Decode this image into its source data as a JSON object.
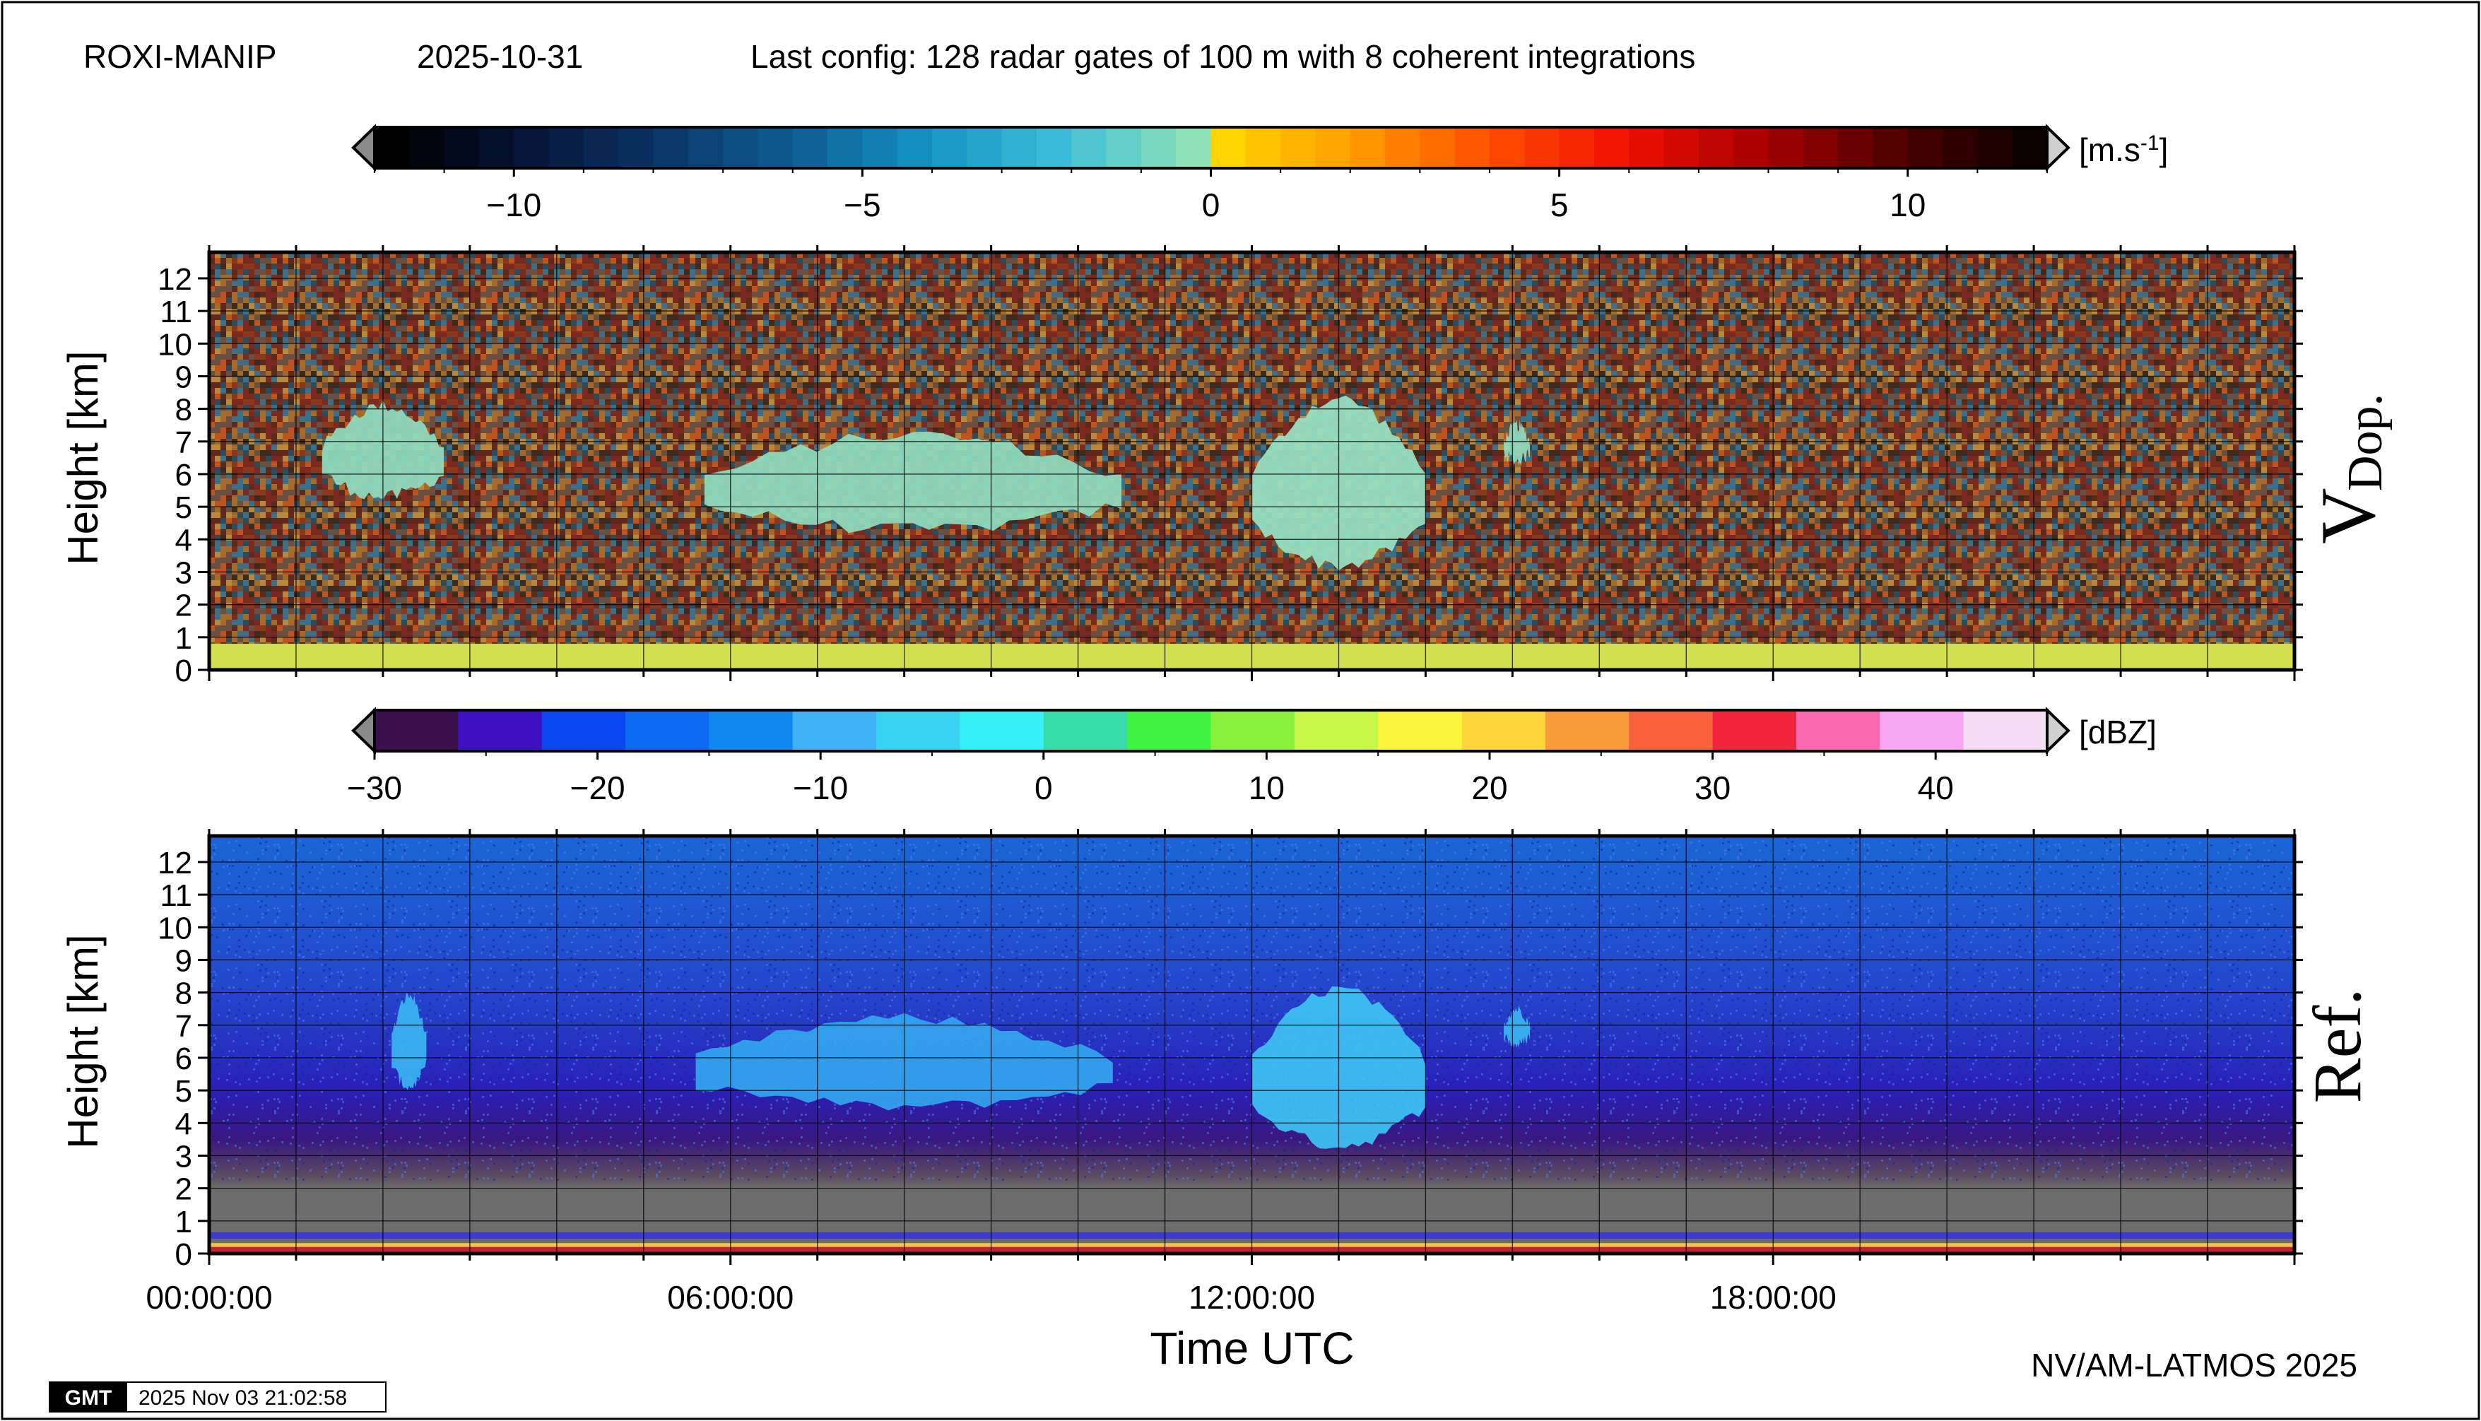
{
  "header": {
    "station": "ROXI-MANIP",
    "date": "2025-10-31",
    "config": "Last config: 128 radar gates of 100 m with 8 coherent integrations"
  },
  "footer": {
    "credit": "NV/AM-LATMOS 2025",
    "gmt_logo": "GMT",
    "gmt_timestamp": "2025 Nov 03 21:02:58"
  },
  "chart_data": [
    {
      "type": "heatmap",
      "label": "V",
      "label_sub": "Dop.",
      "ylabel": "Height [km]",
      "xlabel": "",
      "ylim": [
        0,
        12.8
      ],
      "xlim_hours": [
        0,
        24
      ],
      "y_ticks": [
        0,
        1,
        2,
        3,
        4,
        5,
        6,
        7,
        8,
        9,
        10,
        11,
        12
      ],
      "x_tick_labels": [],
      "grid": true,
      "colorbar": {
        "unit": "[m.s",
        "unit_sup": "-1",
        "unit_end": "]",
        "range": [
          -12,
          12
        ],
        "ticks": [
          -10,
          -5,
          0,
          5,
          10
        ],
        "tick_labels": [
          "−10",
          "−5",
          "0",
          "5",
          "10"
        ],
        "colors_negative": [
          "#000000",
          "#061437",
          "#0b3567",
          "#0e5c92",
          "#1493c3",
          "#3dbdd8",
          "#8ee3b8"
        ],
        "colors_positive": [
          "#ffd500",
          "#ff9800",
          "#ff4a00",
          "#ef0e00",
          "#a60000",
          "#4f0000",
          "#0c0000"
        ],
        "end_arrow_color": "#8a8a8a"
      },
      "background": "noise",
      "near_ground_layer": {
        "from_km": 0,
        "to_km": 0.8,
        "color": "#d4df50",
        "value_approx": 1
      },
      "cloud_echoes": [
        {
          "start_h": 1.3,
          "end_h": 2.7,
          "base_km": 5.3,
          "top_km": 8.1,
          "color": "#8fdcc0"
        },
        {
          "start_h": 5.7,
          "end_h": 10.5,
          "base_km": 4.3,
          "top_km": 7.2,
          "color": "#8fdcc0"
        },
        {
          "start_h": 12.0,
          "end_h": 14.0,
          "base_km": 3.2,
          "top_km": 8.3,
          "color": "#97e3c6"
        },
        {
          "start_h": 14.9,
          "end_h": 15.2,
          "base_km": 6.4,
          "top_km": 7.5,
          "color": "#8fdcc0"
        }
      ]
    },
    {
      "type": "heatmap",
      "label": "Ref.",
      "ylabel": "Height [km]",
      "xlabel": "Time UTC",
      "ylim": [
        0,
        12.8
      ],
      "xlim_hours": [
        0,
        24
      ],
      "y_ticks": [
        0,
        1,
        2,
        3,
        4,
        5,
        6,
        7,
        8,
        9,
        10,
        11,
        12
      ],
      "x_ticks_hours": [
        0,
        6,
        12,
        18
      ],
      "x_tick_labels": [
        "00:00:00",
        "06:00:00",
        "12:00:00",
        "18:00:00"
      ],
      "grid": true,
      "colorbar": {
        "unit": "[dBZ]",
        "range": [
          -30,
          45
        ],
        "ticks": [
          -30,
          -20,
          -10,
          0,
          10,
          20,
          30,
          40
        ],
        "tick_labels": [
          "−30",
          "−20",
          "−10",
          "0",
          "10",
          "20",
          "30",
          "40"
        ],
        "colors": [
          "#3a0f4b",
          "#3d11c2",
          "#0a46f2",
          "#0c6af3",
          "#1188f0",
          "#3fb3f3",
          "#3ad2f2",
          "#35f0f6",
          "#38dca8",
          "#3ef440",
          "#8bf03c",
          "#c7f549",
          "#faf53c",
          "#fcd53a",
          "#f99b3b",
          "#f7613d",
          "#f2243e",
          "#f968b2",
          "#f7a7f2",
          "#f8dcf6"
        ],
        "end_arrow_color": "#8a8a8a"
      },
      "background_gradient": [
        {
          "km": 12.8,
          "color": "#1a66d6"
        },
        {
          "km": 8.0,
          "color": "#2346cc"
        },
        {
          "km": 5.0,
          "color": "#2a1fb8"
        },
        {
          "km": 3.5,
          "color": "#3a1780"
        },
        {
          "km": 2.4,
          "color": "#5b4a60"
        },
        {
          "km": 2.0,
          "color": "#6d6d6d"
        },
        {
          "km": 0.7,
          "color": "#6d6d6d"
        }
      ],
      "ground_bands": [
        {
          "from_km": 0.45,
          "to_km": 0.65,
          "color": "#3b3bd0"
        },
        {
          "from_km": 0.2,
          "to_km": 0.32,
          "color": "#f6c24a"
        },
        {
          "from_km": 0.0,
          "to_km": 0.2,
          "color": "#c0203a"
        }
      ],
      "cloud_echoes": [
        {
          "start_h": 2.1,
          "end_h": 2.5,
          "base_km": 5.1,
          "top_km": 7.9,
          "color": "#3bb8f3"
        },
        {
          "start_h": 5.6,
          "end_h": 10.4,
          "base_km": 4.5,
          "top_km": 7.2,
          "color": "#33a8f0"
        },
        {
          "start_h": 12.0,
          "end_h": 14.0,
          "base_km": 3.3,
          "top_km": 8.1,
          "color": "#3fc6f5"
        },
        {
          "start_h": 14.9,
          "end_h": 15.2,
          "base_km": 6.4,
          "top_km": 7.5,
          "color": "#3bb8f3"
        }
      ]
    }
  ]
}
